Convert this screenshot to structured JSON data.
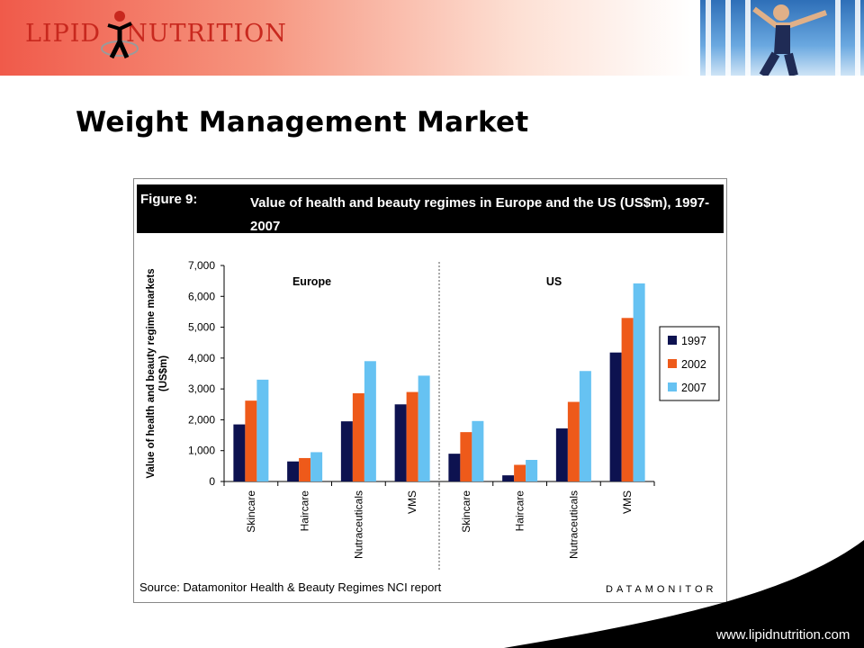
{
  "header": {
    "logo_text_left": "LIPID",
    "logo_text_right": "NUTRITION",
    "brand_color": "#c8281e"
  },
  "slide": {
    "title": "Weight Management Market",
    "footer_url": "www.lipidnutrition.com"
  },
  "figure": {
    "label": "Figure 9:",
    "title": "Value of health and beauty regimes in Europe and the US (US$m), 1997-2007",
    "source": "Source: Datamonitor Health & Beauty Regimes NCI report",
    "brand": "DATAMONITOR"
  },
  "chart_data": {
    "type": "bar",
    "ylabel": "Value of health and beauty regime markets (US$m)",
    "ylim": [
      0,
      7000
    ],
    "yticks": [
      "0",
      "1,000",
      "2,000",
      "3,000",
      "4,000",
      "5,000",
      "6,000",
      "7,000"
    ],
    "groups": [
      {
        "name": "Europe",
        "categories": [
          "Skincare",
          "Haircare",
          "Nutraceuticals",
          "VMS"
        ]
      },
      {
        "name": "US",
        "categories": [
          "Skincare",
          "Haircare",
          "Nutraceuticals",
          "VMS"
        ]
      }
    ],
    "series": [
      {
        "name": "1997",
        "color": "#0d1250",
        "values": [
          1850,
          650,
          1950,
          2500,
          900,
          200,
          1720,
          4180
        ]
      },
      {
        "name": "2002",
        "color": "#ee5a1a",
        "values": [
          2620,
          760,
          2860,
          2900,
          1600,
          540,
          2580,
          5300
        ]
      },
      {
        "name": "2007",
        "color": "#66c2f2",
        "values": [
          3300,
          950,
          3900,
          3430,
          1960,
          700,
          3580,
          6420
        ]
      }
    ],
    "legend_position": "right",
    "grid": false
  }
}
